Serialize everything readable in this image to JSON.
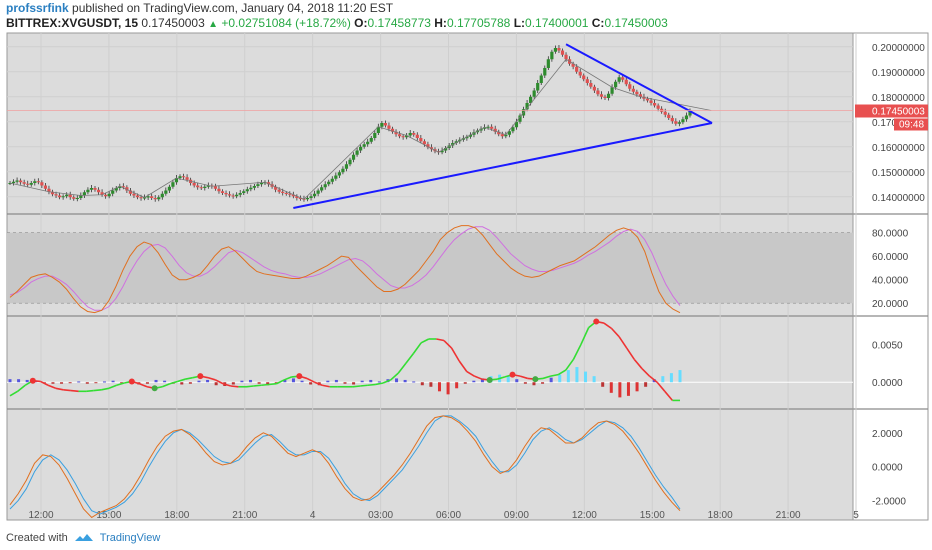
{
  "header": {
    "username": "profssrfink",
    "published_text": "published on TradingView.com, January 04, 2018 11:20 EST",
    "symbol": "BITTREX:XVGUSDT, 15",
    "last_price": "0.17450003",
    "change": "+0.02751084 (+18.72%)",
    "open_label": "O:",
    "open": "0.17458773",
    "high_label": "H:",
    "high": "0.17705788",
    "low_label": "L:",
    "low": "0.17400001",
    "close_label": "C:",
    "close": "0.17450003"
  },
  "footer": {
    "created_with": "Created with",
    "brand": "TradingView"
  },
  "colors": {
    "up": "#2e8b2e",
    "down": "#e05050",
    "trendline": "#1a1aff",
    "stoch_k": "#e07020",
    "stoch_d": "#d070e0",
    "macd_up": "#33dd33",
    "macd_down": "#ee3333",
    "osc_a": "#e07020",
    "osc_b": "#3aa0e0",
    "price_tag": "#e85050"
  },
  "chart_data": {
    "type": "candlestick",
    "x_tick_labels": [
      "12:00",
      "15:00",
      "18:00",
      "21:00",
      "4",
      "03:00",
      "06:00",
      "09:00",
      "12:00",
      "15:00",
      "18:00",
      "21:00",
      "5"
    ],
    "price_axis": {
      "ticks": [
        "0.20000000",
        "0.19000000",
        "0.18000000",
        "0.170",
        "0.16000000",
        "0.15000000",
        "0.14000000"
      ],
      "tick_values": [
        0.2,
        0.19,
        0.18,
        0.17,
        0.16,
        0.15,
        0.14
      ],
      "range": [
        0.1335,
        0.2055
      ],
      "current_price_label": "0.17450003",
      "countdown_label": "09:48"
    },
    "close_series": [
      0.1455,
      0.146,
      0.1465,
      0.1458,
      0.1452,
      0.1448,
      0.1455,
      0.1462,
      0.1458,
      0.1445,
      0.1432,
      0.142,
      0.141,
      0.1405,
      0.1398,
      0.1402,
      0.1408,
      0.1398,
      0.1392,
      0.1395,
      0.1405,
      0.1418,
      0.1428,
      0.1435,
      0.1428,
      0.1418,
      0.1408,
      0.1402,
      0.1412,
      0.1425,
      0.1435,
      0.1442,
      0.1438,
      0.1425,
      0.1412,
      0.1405,
      0.1398,
      0.1394,
      0.1397,
      0.1402,
      0.1395,
      0.139,
      0.1398,
      0.1412,
      0.1425,
      0.144,
      0.1458,
      0.1475,
      0.1482,
      0.1478,
      0.1468,
      0.1455,
      0.1445,
      0.1438,
      0.1435,
      0.144,
      0.1445,
      0.1442,
      0.1432,
      0.1422,
      0.1415,
      0.141,
      0.1405,
      0.1402,
      0.1408,
      0.1415,
      0.1422,
      0.143,
      0.1436,
      0.1443,
      0.145,
      0.1455,
      0.1458,
      0.145,
      0.144,
      0.1428,
      0.142,
      0.1415,
      0.1412,
      0.1408,
      0.1402,
      0.1395,
      0.1392,
      0.139,
      0.1395,
      0.1402,
      0.1412,
      0.1425,
      0.1438,
      0.145,
      0.146,
      0.1472,
      0.1485,
      0.1498,
      0.1512,
      0.153,
      0.1548,
      0.1568,
      0.1585,
      0.16,
      0.161,
      0.162,
      0.1635,
      0.1655,
      0.168,
      0.1695,
      0.1685,
      0.1672,
      0.166,
      0.165,
      0.1642,
      0.1638,
      0.1645,
      0.1655,
      0.1648,
      0.1635,
      0.1622,
      0.161,
      0.1598,
      0.159,
      0.1582,
      0.1578,
      0.1585,
      0.1595,
      0.1605,
      0.1615,
      0.1622,
      0.1628,
      0.1634,
      0.164,
      0.1648,
      0.1658,
      0.1665,
      0.1672,
      0.1678,
      0.168,
      0.1672,
      0.166,
      0.165,
      0.1642,
      0.1648,
      0.1662,
      0.1678,
      0.17,
      0.1725,
      0.175,
      0.1775,
      0.18,
      0.1825,
      0.1855,
      0.1885,
      0.1915,
      0.195,
      0.198,
      0.1995,
      0.1985,
      0.1968,
      0.195,
      0.1932,
      0.192,
      0.19,
      0.1885,
      0.187,
      0.1855,
      0.184,
      0.1825,
      0.181,
      0.18,
      0.1795,
      0.1812,
      0.1838,
      0.186,
      0.1878,
      0.1868,
      0.185,
      0.1832,
      0.182,
      0.181,
      0.18,
      0.1792,
      0.1785,
      0.1775,
      0.1765,
      0.1752,
      0.174,
      0.1728,
      0.1715,
      0.1702,
      0.1692,
      0.1698,
      0.171,
      0.1725,
      0.1745
    ],
    "stochastic": {
      "ticks": [
        "80.0000",
        "60.0000",
        "40.0000",
        "20.0000"
      ],
      "tick_values": [
        80,
        60,
        40,
        20
      ],
      "range": [
        10,
        95
      ],
      "band": [
        20,
        80
      ],
      "k": [
        25,
        30,
        36,
        42,
        44,
        45,
        42,
        38,
        32,
        24,
        17,
        13,
        12,
        14,
        22,
        34,
        48,
        60,
        68,
        72,
        70,
        63,
        53,
        44,
        40,
        40,
        42,
        45,
        52,
        60,
        66,
        68,
        64,
        58,
        52,
        47,
        45,
        44,
        43,
        42,
        41,
        41,
        43,
        46,
        49,
        52,
        56,
        60,
        59,
        52,
        46,
        40,
        34,
        30,
        30,
        32,
        36,
        42,
        48,
        56,
        64,
        74,
        80,
        84,
        86,
        86,
        84,
        78,
        70,
        62,
        56,
        50,
        46,
        43,
        42,
        43,
        46,
        49,
        52,
        54,
        56,
        60,
        64,
        68,
        73,
        78,
        82,
        84,
        82,
        76,
        64,
        46,
        30,
        20,
        15,
        12
      ],
      "d": [
        27,
        29,
        33,
        38,
        41,
        43,
        43,
        40,
        36,
        30,
        23,
        17,
        14,
        14,
        17,
        24,
        34,
        46,
        56,
        64,
        69,
        70,
        67,
        60,
        52,
        46,
        43,
        43,
        46,
        51,
        57,
        63,
        65,
        63,
        59,
        55,
        51,
        48,
        46,
        45,
        43,
        42,
        42,
        43,
        45,
        48,
        51,
        54,
        57,
        58,
        56,
        51,
        45,
        40,
        35,
        33,
        33,
        35,
        39,
        44,
        51,
        59,
        67,
        74,
        79,
        83,
        85,
        85,
        82,
        76,
        69,
        62,
        57,
        52,
        49,
        47,
        47,
        48,
        50,
        52,
        54,
        57,
        61,
        64,
        68,
        72,
        77,
        81,
        83,
        81,
        74,
        63,
        49,
        36,
        26,
        18
      ]
    },
    "macd": {
      "ticks": [
        "0.0050",
        "0.0000"
      ],
      "tick_values": [
        0.005,
        0
      ],
      "range": [
        -0.0034,
        0.0086
      ],
      "histogram": [
        0.0004,
        0.0004,
        0.0003,
        0.0002,
        -0.0001,
        -0.0002,
        -0.0002,
        -0.0001,
        0.0001,
        -0.0002,
        -0.0001,
        0.0001,
        0.0002,
        -0.0001,
        0.0002,
        -0.0003,
        -0.0002,
        0.0003,
        0.0002,
        -0.0002,
        -0.0003,
        -0.0002,
        0.0002,
        0.0003,
        -0.0004,
        -0.0005,
        -0.0003,
        0.0002,
        0.0003,
        -0.0002,
        -0.0004,
        -0.0002,
        0.0003,
        0.0005,
        0.0002,
        -0.0003,
        -0.0004,
        0.0002,
        0.0003,
        -0.0002,
        -0.0003,
        0.0002,
        0.0003,
        0.0001,
        0.0004,
        0.0005,
        0.0003,
        0.0001,
        -0.0004,
        -0.0006,
        -0.0012,
        -0.0016,
        -0.0008,
        -0.0002,
        0.0002,
        0.0005,
        0.0008,
        0.001,
        0.0008,
        0.0004,
        -0.0002,
        -0.0004,
        -0.0002,
        0.0006,
        0.001,
        0.0016,
        0.002,
        0.0014,
        0.0008,
        -0.0006,
        -0.0014,
        -0.002,
        -0.0018,
        -0.0012,
        -0.0006,
        0.0004,
        0.0008,
        0.0012,
        0.0016
      ],
      "line": [
        -0.0018,
        -0.0012,
        -0.0004,
        0.0002,
        0.0001,
        -0.0004,
        -0.0008,
        -0.001,
        -0.0011,
        -0.0012,
        -0.0012,
        -0.0011,
        -0.001,
        -0.0008,
        -0.0004,
        -0.0001,
        0.0001,
        -0.0002,
        -0.0006,
        -0.0008,
        -0.0006,
        -0.0002,
        0.0001,
        0.0004,
        0.0006,
        0.0008,
        0.0006,
        0.0003,
        -0.0002,
        -0.0005,
        -0.0006,
        -0.0006,
        -0.0005,
        -0.0004,
        -0.0003,
        -0.0002,
        0.0003,
        0.0007,
        0.0008,
        0.0005,
        0.0,
        -0.0004,
        -0.0006,
        -0.0006,
        -0.0006,
        -0.0006,
        -0.0005,
        -0.0004,
        -0.0003,
        -0.0001,
        0.0003,
        0.0012,
        0.0025,
        0.0038,
        0.0052,
        0.0057,
        0.0057,
        0.0055,
        0.0045,
        0.0028,
        0.0014,
        0.0008,
        0.0004,
        0.0003,
        0.0004,
        0.0007,
        0.001,
        0.0008,
        0.0005,
        0.0004,
        0.0005,
        0.0008,
        0.001,
        0.0016,
        0.003,
        0.005,
        0.0072,
        0.008,
        0.0078,
        0.0071,
        0.006,
        0.0045,
        0.003,
        0.0018,
        0.0008,
        0.0,
        -0.0012,
        -0.0024,
        -0.0024
      ]
    },
    "oscillator": {
      "ticks": [
        "2.0000",
        "0.0000",
        "-2.0000"
      ],
      "tick_values": [
        2,
        0,
        -2
      ],
      "range": [
        -3.15,
        3.35
      ],
      "a": [
        -2.25,
        -1.6,
        -0.8,
        0.2,
        0.7,
        0.6,
        0.1,
        -0.7,
        -1.6,
        -2.5,
        -3.0,
        -2.7,
        -2.5,
        -2.3,
        -1.9,
        -1.3,
        -0.5,
        0.4,
        1.2,
        1.8,
        2.1,
        2.2,
        1.9,
        1.4,
        0.8,
        0.3,
        0.1,
        0.2,
        0.6,
        1.2,
        1.7,
        2.0,
        1.8,
        1.3,
        0.8,
        0.6,
        0.8,
        1.0,
        0.8,
        0.2,
        -0.6,
        -1.3,
        -1.8,
        -2.0,
        -1.9,
        -1.5,
        -1.0,
        -0.5,
        0.1,
        0.8,
        1.6,
        2.4,
        2.9,
        3.0,
        2.9,
        2.6,
        2.1,
        1.5,
        0.7,
        0.0,
        -0.4,
        -0.2,
        0.4,
        1.2,
        1.9,
        2.3,
        2.2,
        1.8,
        1.4,
        1.4,
        1.7,
        2.2,
        2.6,
        2.7,
        2.5,
        2.1,
        1.5,
        0.8,
        0.0,
        -0.8,
        -1.5,
        -2.1,
        -2.6
      ],
      "b": [
        -2.5,
        -2.0,
        -1.3,
        -0.3,
        0.4,
        0.7,
        0.4,
        -0.2,
        -1.0,
        -1.9,
        -2.6,
        -2.8,
        -2.6,
        -2.4,
        -2.1,
        -1.6,
        -0.9,
        0.0,
        0.8,
        1.5,
        2.0,
        2.2,
        2.0,
        1.6,
        1.1,
        0.6,
        0.3,
        0.2,
        0.4,
        0.9,
        1.4,
        1.8,
        1.9,
        1.5,
        1.0,
        0.7,
        0.7,
        0.9,
        0.9,
        0.5,
        -0.2,
        -1.0,
        -1.6,
        -1.9,
        -2.0,
        -1.7,
        -1.2,
        -0.7,
        -0.2,
        0.5,
        1.2,
        2.0,
        2.7,
        3.0,
        3.0,
        2.7,
        2.3,
        1.8,
        1.0,
        0.3,
        -0.3,
        -0.3,
        0.1,
        0.8,
        1.6,
        2.1,
        2.3,
        2.0,
        1.6,
        1.4,
        1.6,
        2.0,
        2.4,
        2.7,
        2.6,
        2.3,
        1.8,
        1.1,
        0.3,
        -0.5,
        -1.2,
        -1.8,
        -2.5
      ]
    }
  }
}
